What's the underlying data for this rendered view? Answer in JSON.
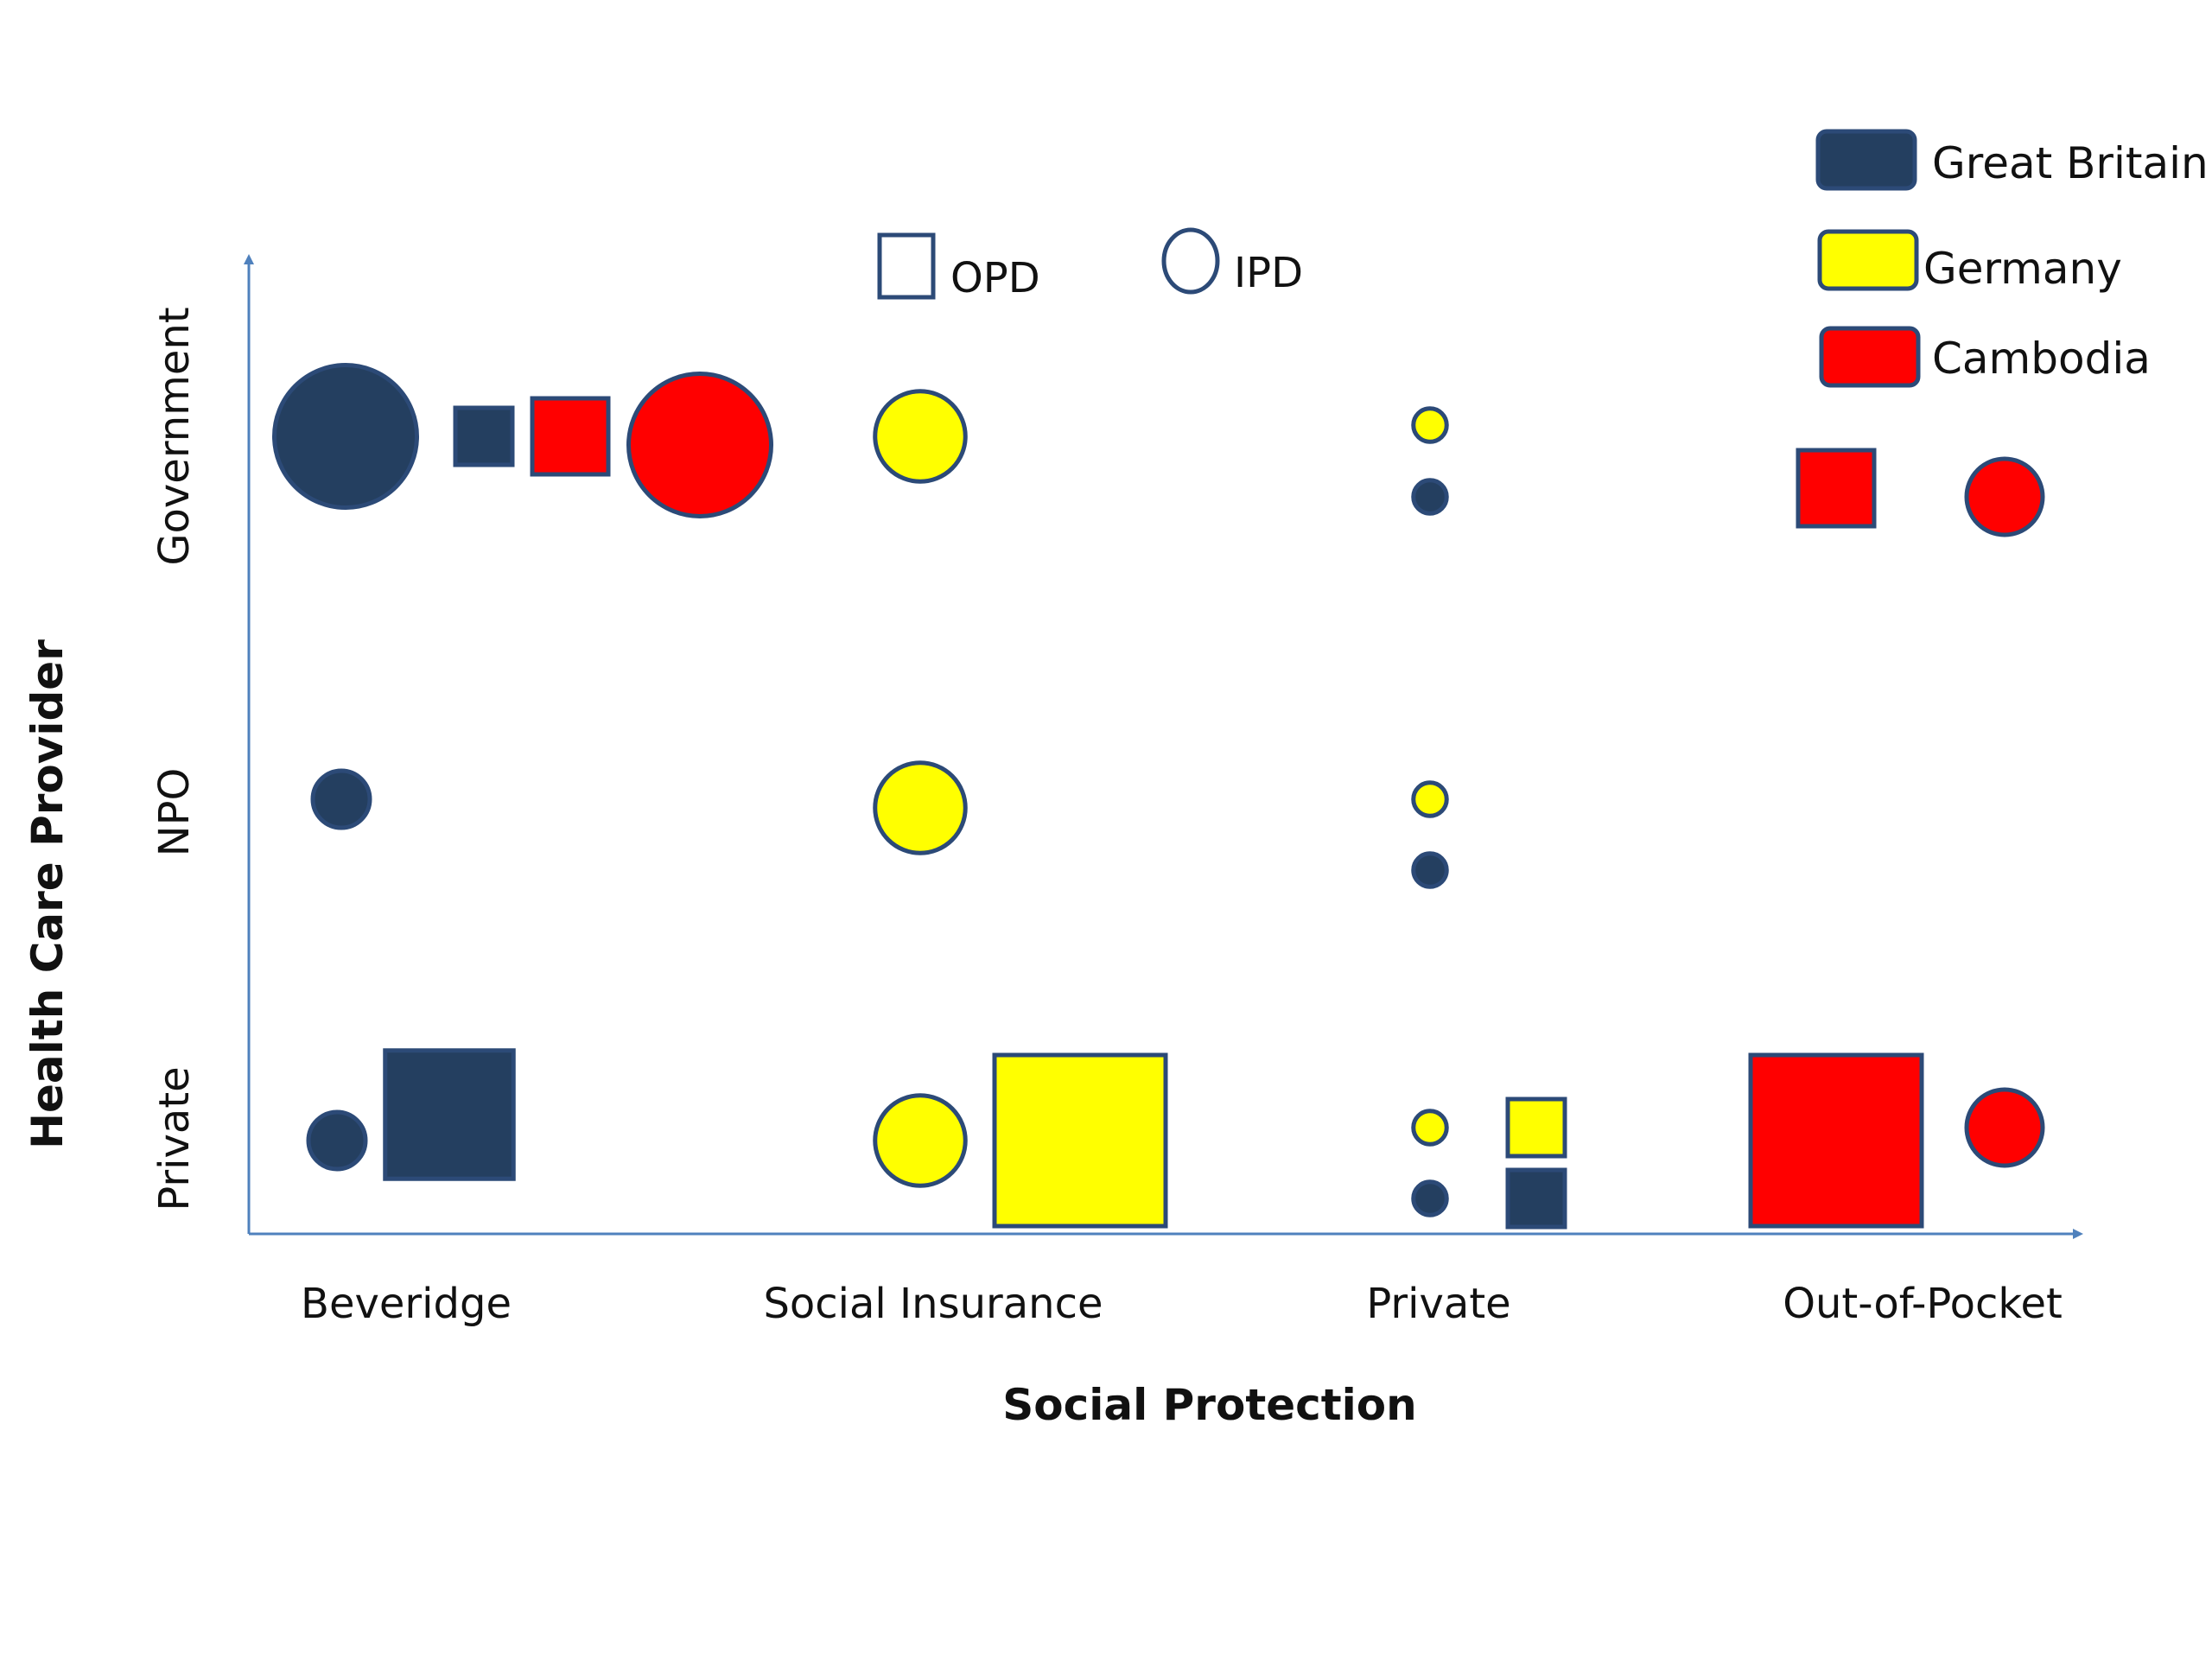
{
  "chart_data": {
    "type": "scatter",
    "xlabel": "Social Protection",
    "ylabel": "Health Care Provider",
    "categories": [
      "Beveridge",
      "Social Insurance",
      "Private",
      "Out-of-Pocket"
    ],
    "y_categories": [
      "Government",
      "NPO",
      "Private"
    ],
    "shape_legend": [
      {
        "shape": "square",
        "label": "OPD"
      },
      {
        "shape": "circle",
        "label": "IPD"
      }
    ],
    "legend": [
      {
        "name": "Great Britain",
        "color": "#243f60"
      },
      {
        "name": "Germany",
        "color": "#ffff00"
      },
      {
        "name": "Cambodia",
        "color": "#ff0000"
      }
    ],
    "legend_position": "top-right",
    "series": [
      {
        "name": "Great Britain",
        "color": "#243f60",
        "points": [
          {
            "x": "Beveridge",
            "y": "Government",
            "type": "IPD",
            "size": 3
          },
          {
            "x": "Beveridge",
            "y": "Government",
            "type": "OPD",
            "size": 1.2
          },
          {
            "x": "Beveridge",
            "y": "NPO",
            "type": "IPD",
            "size": 1.2
          },
          {
            "x": "Beveridge",
            "y": "Private",
            "type": "IPD",
            "size": 1.2
          },
          {
            "x": "Beveridge",
            "y": "Private",
            "type": "OPD",
            "size": 2.7
          },
          {
            "x": "Private",
            "y": "Government",
            "type": "IPD",
            "size": 0.7
          },
          {
            "x": "Private",
            "y": "NPO",
            "type": "IPD",
            "size": 0.7
          },
          {
            "x": "Private",
            "y": "Private",
            "type": "IPD",
            "size": 0.7
          },
          {
            "x": "Private",
            "y": "Private",
            "type": "OPD",
            "size": 1.2
          }
        ]
      },
      {
        "name": "Germany",
        "color": "#ffff00",
        "points": [
          {
            "x": "Social Insurance",
            "y": "Government",
            "type": "IPD",
            "size": 1.9
          },
          {
            "x": "Social Insurance",
            "y": "NPO",
            "type": "IPD",
            "size": 1.9
          },
          {
            "x": "Social Insurance",
            "y": "Private",
            "type": "IPD",
            "size": 1.9
          },
          {
            "x": "Social Insurance",
            "y": "Private",
            "type": "OPD",
            "size": 3.6
          },
          {
            "x": "Private",
            "y": "Government",
            "type": "IPD",
            "size": 0.7
          },
          {
            "x": "Private",
            "y": "NPO",
            "type": "IPD",
            "size": 0.7
          },
          {
            "x": "Private",
            "y": "Private",
            "type": "IPD",
            "size": 0.7
          },
          {
            "x": "Private",
            "y": "Private",
            "type": "OPD",
            "size": 1.2
          }
        ]
      },
      {
        "name": "Cambodia",
        "color": "#ff0000",
        "points": [
          {
            "x": "Beveridge",
            "y": "Government",
            "type": "OPD",
            "size": 1.6
          },
          {
            "x": "Beveridge",
            "y": "Government",
            "type": "IPD",
            "size": 3
          },
          {
            "x": "Out-of-Pocket",
            "y": "Government",
            "type": "OPD",
            "size": 1.6
          },
          {
            "x": "Out-of-Pocket",
            "y": "Government",
            "type": "IPD",
            "size": 1.6
          },
          {
            "x": "Out-of-Pocket",
            "y": "Private",
            "type": "OPD",
            "size": 3.6
          },
          {
            "x": "Out-of-Pocket",
            "y": "Private",
            "type": "IPD",
            "size": 1.6
          }
        ]
      }
    ]
  }
}
